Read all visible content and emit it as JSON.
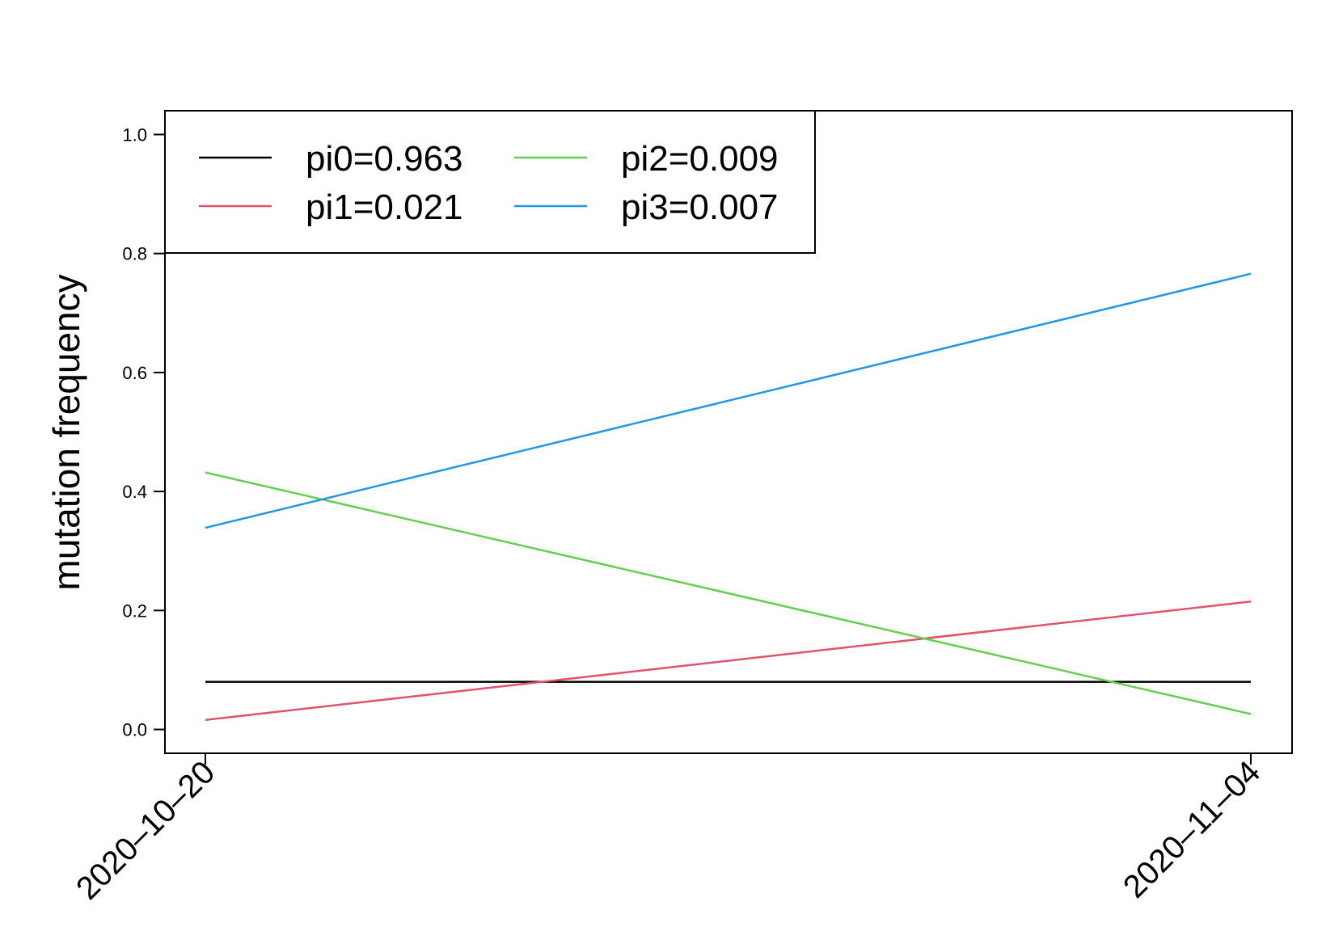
{
  "chart_data": {
    "type": "line",
    "title": "",
    "xlabel": "",
    "ylabel": "mutation frequency",
    "x": [
      "2020-10-20",
      "2020-11-04"
    ],
    "xtick_labels": [
      "2020–10–20",
      "2020–11–04"
    ],
    "ylim": [
      -0.04,
      1.04
    ],
    "yticks": [
      0.0,
      0.2,
      0.4,
      0.6,
      0.8,
      1.0
    ],
    "ytick_labels": [
      "0.0",
      "0.2",
      "0.4",
      "0.6",
      "0.8",
      "1.0"
    ],
    "grid": false,
    "legend_position": "top-left",
    "series": [
      {
        "name": "pi0=0.963",
        "color": "#000000",
        "values": [
          0.08,
          0.08
        ]
      },
      {
        "name": "pi1=0.021",
        "color": "#DF536B",
        "values": [
          0.016,
          0.215
        ]
      },
      {
        "name": "pi2=0.009",
        "color": "#61D04F",
        "values": [
          0.432,
          0.026
        ]
      },
      {
        "name": "pi3=0.007",
        "color": "#2297E6",
        "values": [
          0.339,
          0.766
        ]
      }
    ]
  }
}
